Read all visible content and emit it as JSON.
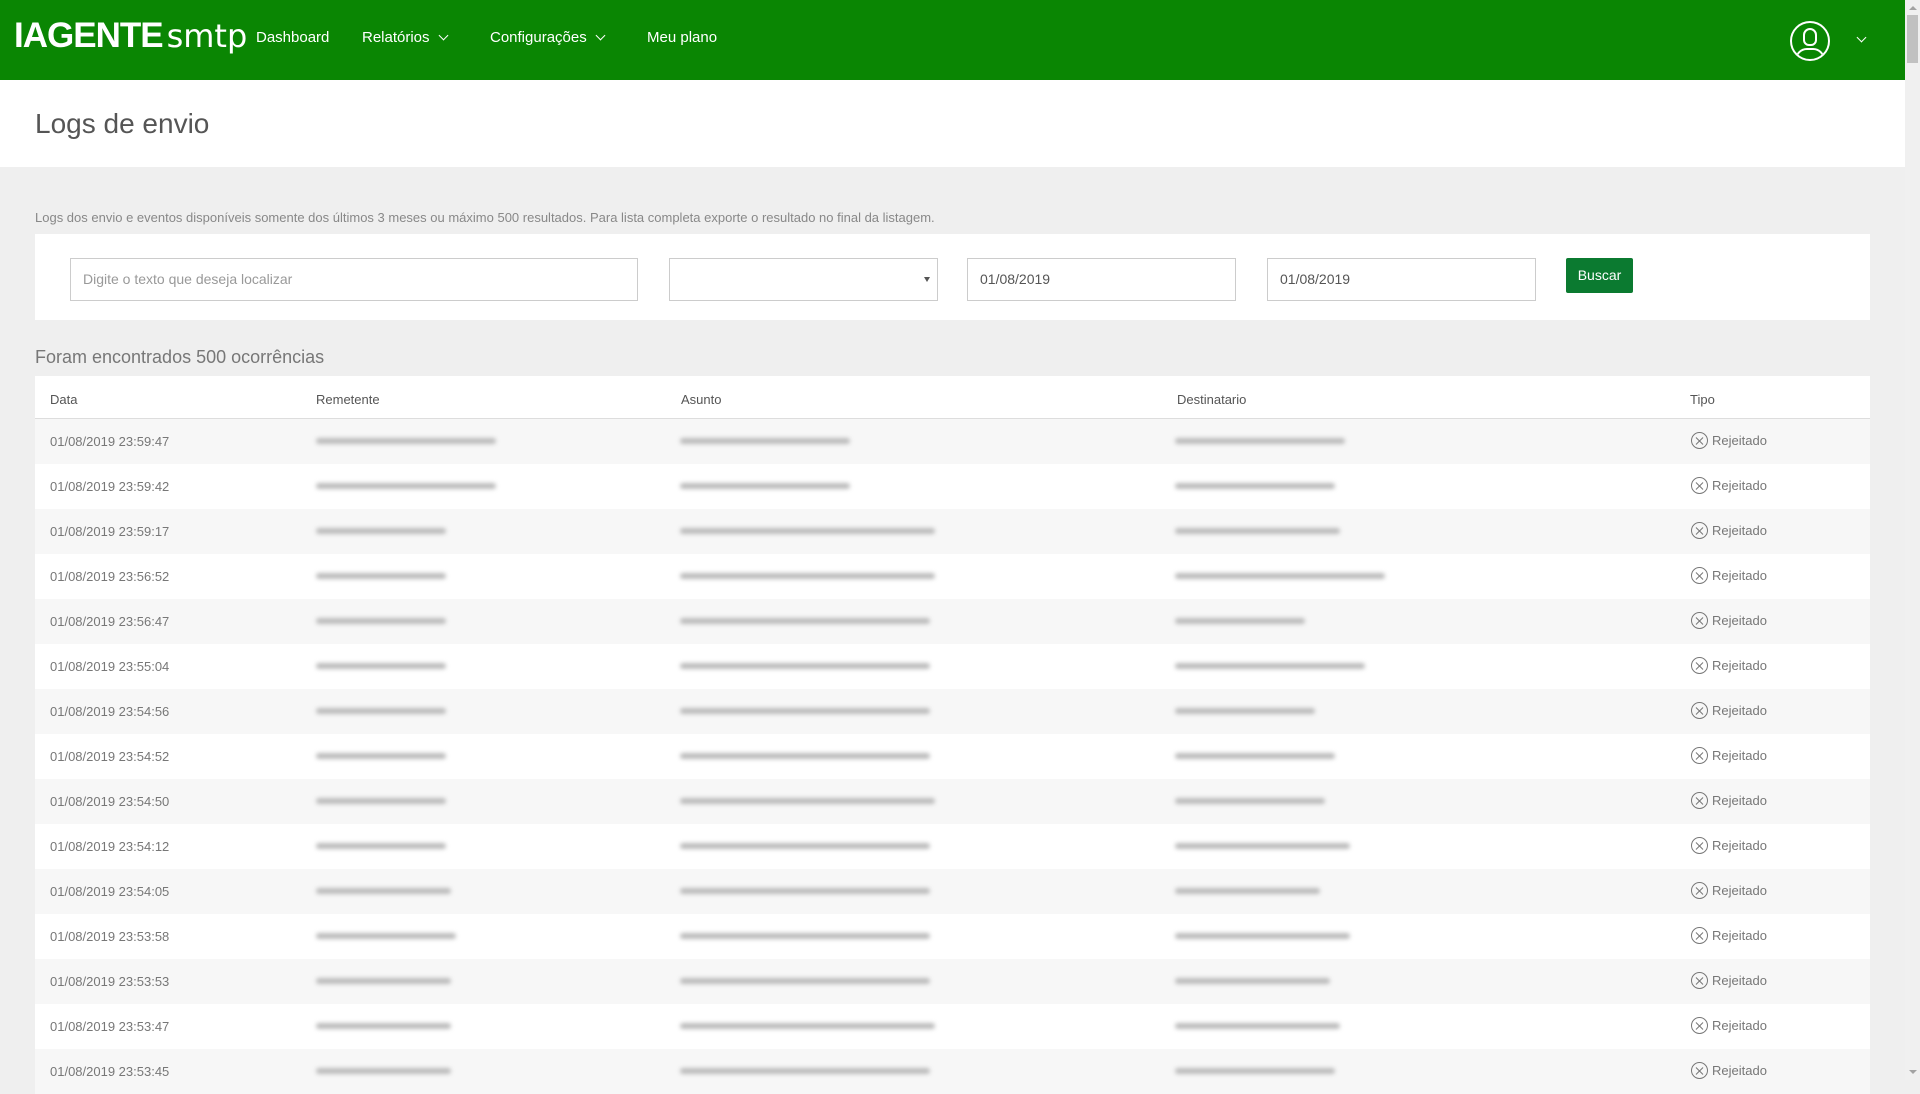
{
  "header": {
    "logo_bold": "IAGENTE",
    "logo_light": "smtp",
    "nav": [
      "Dashboard",
      "Relatórios",
      "Configurações",
      "Meu plano"
    ],
    "brand_color": "#0a8603"
  },
  "page": {
    "title": "Logs de envio",
    "info": "Logs dos envio e eventos disponíveis somente dos últimos 3 meses ou máximo 500 resultados. Para lista completa exporte o resultado no final da listagem."
  },
  "filters": {
    "search_placeholder": "Digite o texto que deseja localizar",
    "select_value": "",
    "date_from": "01/08/2019",
    "date_to": "01/08/2019",
    "search_button": "Buscar"
  },
  "results": {
    "count_text": "Foram encontrados 500 ocorrências"
  },
  "table": {
    "columns": [
      "Data",
      "Remetente",
      "Asunto",
      "Destinatario",
      "Tipo"
    ],
    "rows": [
      {
        "date": "01/08/2019 23:59:47",
        "tipo": "Rejeitado"
      },
      {
        "date": "01/08/2019 23:59:42",
        "tipo": "Rejeitado"
      },
      {
        "date": "01/08/2019 23:59:17",
        "tipo": "Rejeitado"
      },
      {
        "date": "01/08/2019 23:56:52",
        "tipo": "Rejeitado"
      },
      {
        "date": "01/08/2019 23:56:47",
        "tipo": "Rejeitado"
      },
      {
        "date": "01/08/2019 23:55:04",
        "tipo": "Rejeitado"
      },
      {
        "date": "01/08/2019 23:54:56",
        "tipo": "Rejeitado"
      },
      {
        "date": "01/08/2019 23:54:52",
        "tipo": "Rejeitado"
      },
      {
        "date": "01/08/2019 23:54:50",
        "tipo": "Rejeitado"
      },
      {
        "date": "01/08/2019 23:54:12",
        "tipo": "Rejeitado"
      },
      {
        "date": "01/08/2019 23:54:05",
        "tipo": "Rejeitado"
      },
      {
        "date": "01/08/2019 23:53:58",
        "tipo": "Rejeitado"
      },
      {
        "date": "01/08/2019 23:53:53",
        "tipo": "Rejeitado"
      },
      {
        "date": "01/08/2019 23:53:47",
        "tipo": "Rejeitado"
      },
      {
        "date": "01/08/2019 23:53:45",
        "tipo": "Rejeitado"
      }
    ]
  }
}
